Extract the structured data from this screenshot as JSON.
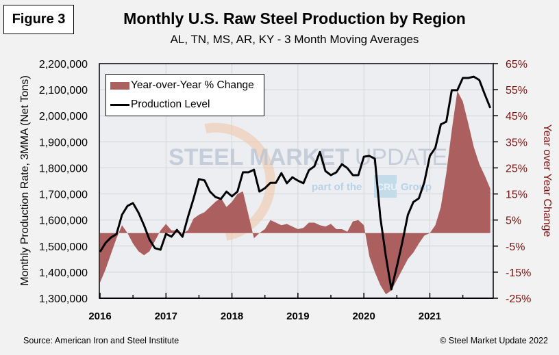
{
  "figure_label": "Figure 3",
  "source": "Source: American Iron and Steel Institute",
  "copyright": "© Steel Market Update 2022",
  "watermark": {
    "main_bold": "STEEL MARKET",
    "main_light": "UPDATE",
    "sub": "part of the",
    "badge": "CRU",
    "group": "Group"
  },
  "colors": {
    "area": "#ac5f5f",
    "line": "#000000",
    "right_axis": "#7a1010",
    "plot_bg": "#eceef1",
    "grid": "#d4d4d4"
  },
  "chart_data": {
    "type": "line+area",
    "title": "Monthly U.S. Raw Steel Production by Region",
    "subtitle": "AL, TN, MS, AR, KY - 3 Month Moving Averages",
    "ylabel": "Monthly Production Rate, 3MMA (Net Tons)",
    "y2label": "Year over Year Change",
    "xlabel": "",
    "ylim": [
      1300000,
      2200000
    ],
    "y2lim": [
      -25,
      65
    ],
    "yticks": [
      "1,300,000",
      "1,400,000",
      "1,500,000",
      "1,600,000",
      "1,700,000",
      "1,800,000",
      "1,900,000",
      "2,000,000",
      "2,100,000",
      "2,200,000"
    ],
    "y2ticks": [
      "-25%",
      "-15%",
      "-5%",
      "5%",
      "15%",
      "25%",
      "35%",
      "45%",
      "55%",
      "65%"
    ],
    "xticks": [
      "2016",
      "2017",
      "2018",
      "2019",
      "2020",
      "2021"
    ],
    "x_start": "2016-01",
    "x_months": 72,
    "grid": true,
    "legend_position": "top-left",
    "legend": [
      "Year-over-Year % Change",
      "Production Level"
    ],
    "series": [
      {
        "name": "Production Level",
        "type": "line",
        "axis": "left",
        "values": [
          1478000,
          1512000,
          1533000,
          1546000,
          1620000,
          1654000,
          1665000,
          1628000,
          1580000,
          1525000,
          1492000,
          1486000,
          1547000,
          1536000,
          1562000,
          1536000,
          1612000,
          1681000,
          1757000,
          1752000,
          1709000,
          1688000,
          1681000,
          1709000,
          1691000,
          1709000,
          1783000,
          1783000,
          1793000,
          1709000,
          1722000,
          1743000,
          1743000,
          1780000,
          1741000,
          1764000,
          1751000,
          1741000,
          1791000,
          1806000,
          1861000,
          1788000,
          1772000,
          1783000,
          1814000,
          1799000,
          1772000,
          1772000,
          1843000,
          1846000,
          1835000,
          1610000,
          1460000,
          1334000,
          1421000,
          1515000,
          1620000,
          1669000,
          1683000,
          1745000,
          1846000,
          1877000,
          1967000,
          1977000,
          2098000,
          2098000,
          2145000,
          2145000,
          2150000,
          2137000,
          2082000,
          2030000
        ]
      },
      {
        "name": "Year-over-Year % Change",
        "type": "area",
        "axis": "right",
        "values": [
          -19,
          -14,
          -8,
          -2,
          3,
          0,
          -4,
          -7,
          -8.5,
          -7,
          -3,
          1,
          3.5,
          1,
          1,
          0,
          1,
          5.5,
          7,
          8,
          10,
          12,
          13.5,
          10,
          12,
          15,
          16,
          7,
          -2,
          0,
          1.5,
          5,
          4,
          3,
          3.5,
          2.5,
          1.5,
          2,
          4,
          4,
          3,
          2.5,
          3.5,
          1.5,
          1.5,
          0.5,
          4.5,
          5,
          3,
          -9,
          -15,
          -20,
          -23.5,
          -22,
          -18,
          -14,
          -10,
          -7.5,
          -4,
          -1,
          0,
          3,
          10,
          23,
          39.5,
          54.5,
          50.5,
          42,
          33,
          26.5,
          22,
          17
        ]
      }
    ]
  }
}
